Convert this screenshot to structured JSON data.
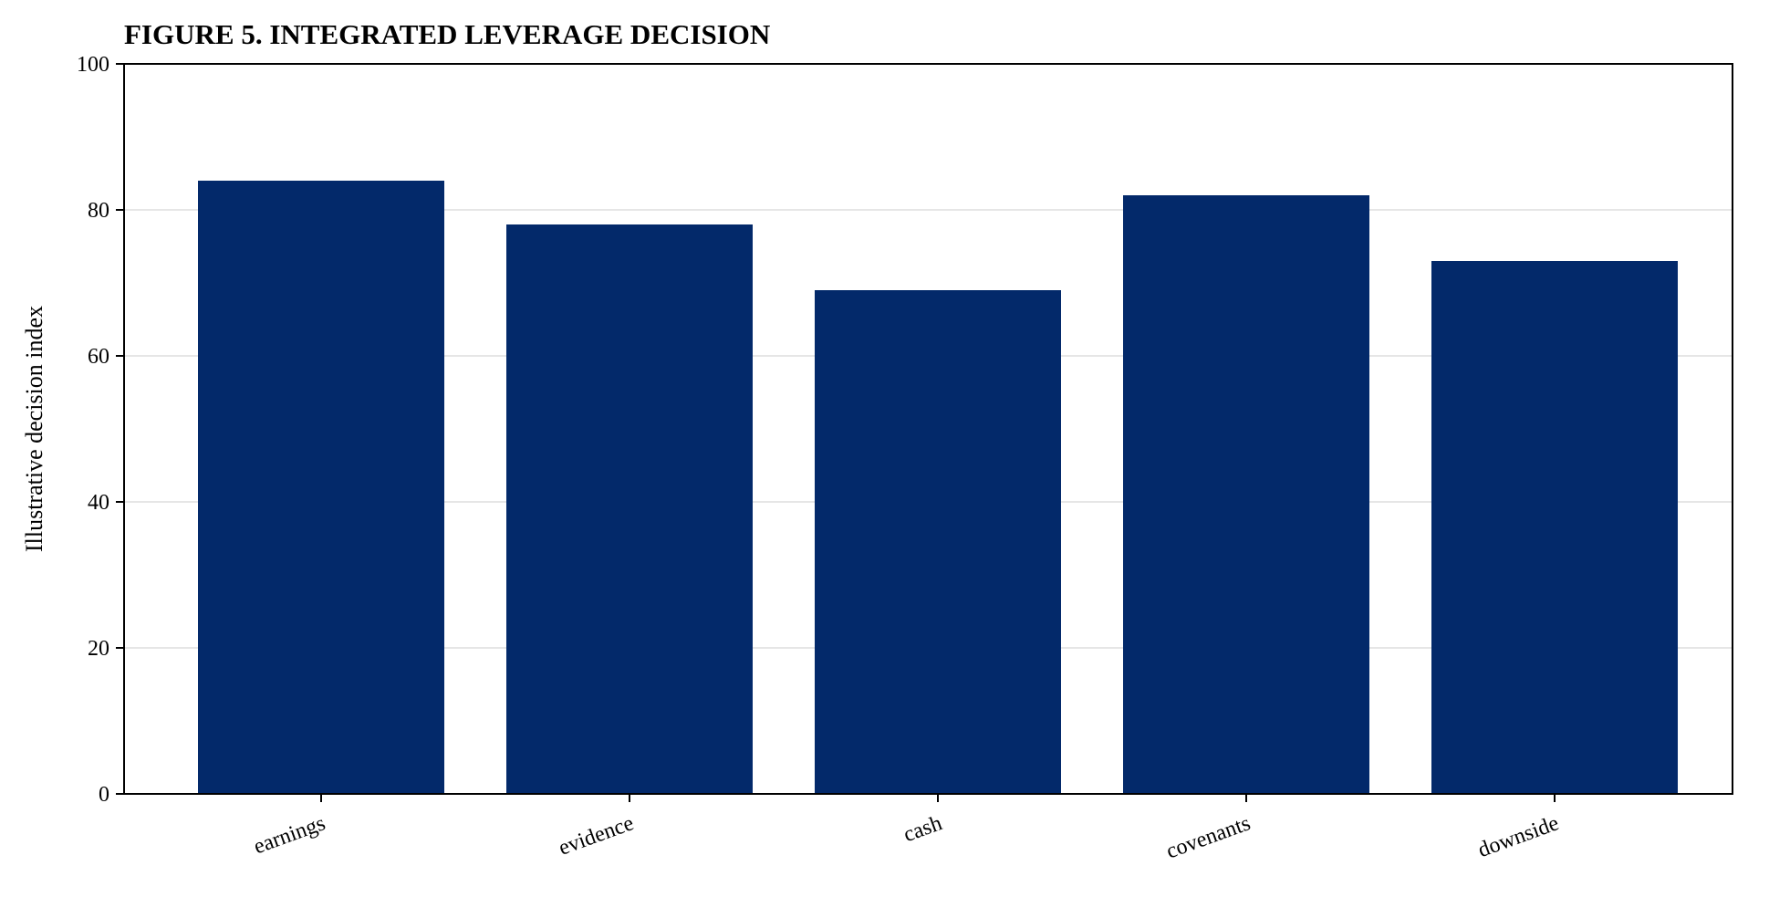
{
  "chart_data": {
    "type": "bar",
    "title": "FIGURE 5. INTEGRATED LEVERAGE DECISION",
    "xlabel": "",
    "ylabel": "Illustrative decision index",
    "categories": [
      "earnings",
      "evidence",
      "cash",
      "covenants",
      "downside"
    ],
    "values": [
      84,
      78,
      69,
      82,
      73
    ],
    "ylim": [
      0,
      100
    ],
    "yticks": [
      "0",
      "20",
      "40",
      "60",
      "80",
      "100"
    ],
    "grid": "horizontal",
    "bar_color": "#03296a",
    "grid_color": "#e6e6e6"
  }
}
